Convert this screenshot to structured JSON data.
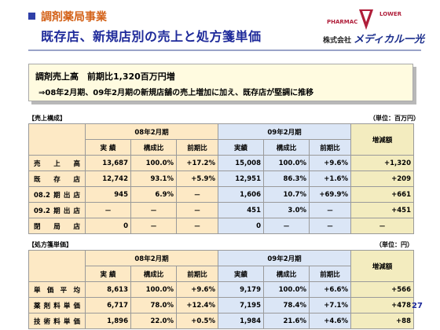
{
  "header": {
    "section_title": "調剤薬局事業",
    "main_title": "既存店、新規店別の売上と処方箋単価"
  },
  "logo": {
    "text_left": "PHARMAC",
    "text_right": "LOWER",
    "company_prefix": "株式会社",
    "company_name": "メディカル一光"
  },
  "summary": {
    "line1": "調剤売上高　前期比1,320百万円増",
    "line2": "⇒08年2月期、09年2月期の新規店舗の売上増加に加え、既存店が堅調に推移"
  },
  "sales": {
    "label": "【売上構成】",
    "unit": "（単位：百万円）",
    "period_08": "08年2月期",
    "period_09": "09年2月期",
    "increase": "増減額",
    "subheaders": [
      "実 績",
      "構成比",
      "前期比",
      "実績",
      "構成比",
      "前期比"
    ],
    "rows": [
      {
        "label": "売上高",
        "v": [
          "13,687",
          "100.0%",
          "+17.2%",
          "15,008",
          "100.0%",
          "+9.6%",
          "+1,320"
        ]
      },
      {
        "label": "既存店",
        "v": [
          "12,742",
          "93.1%",
          "+5.9%",
          "12,951",
          "86.3%",
          "+1.6%",
          "+209"
        ]
      },
      {
        "label": "08.2期出店",
        "v": [
          "945",
          "6.9%",
          "－",
          "1,606",
          "10.7%",
          "+69.9%",
          "+661"
        ]
      },
      {
        "label": "09.2期出店",
        "v": [
          "－",
          "－",
          "－",
          "451",
          "3.0%",
          "－",
          "+451"
        ]
      },
      {
        "label": "閉局店",
        "v": [
          "0",
          "－",
          "－",
          "0",
          "－",
          "－",
          "－"
        ]
      }
    ]
  },
  "prescription": {
    "label": "【処方箋単価】",
    "unit": "（単位：円）",
    "period_08": "08年2月期",
    "period_09": "09年2月期",
    "increase": "増減額",
    "subheaders": [
      "実 績",
      "構成比",
      "前期比",
      "実績",
      "構成比",
      "前期比"
    ],
    "rows": [
      {
        "label": "単価平均",
        "v": [
          "8,613",
          "100.0%",
          "+9.6%",
          "9,179",
          "100.0%",
          "+6.6%",
          "+566"
        ]
      },
      {
        "label": "薬剤料単価",
        "v": [
          "6,717",
          "78.0%",
          "+12.4%",
          "7,195",
          "78.4%",
          "+7.1%",
          "+478"
        ]
      },
      {
        "label": "技術料単価",
        "v": [
          "1,896",
          "22.0%",
          "+0.5%",
          "1,984",
          "21.6%",
          "+4.6%",
          "+88"
        ]
      }
    ]
  },
  "page_number": "27"
}
